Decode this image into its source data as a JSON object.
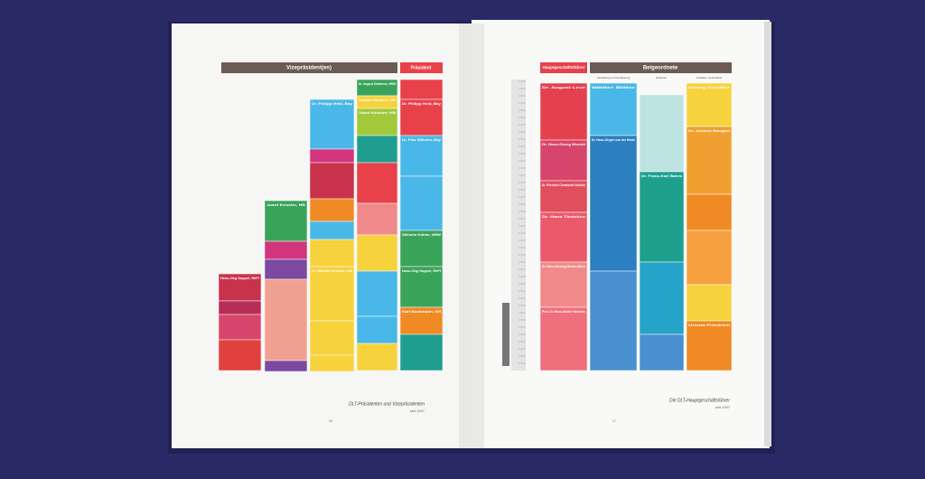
{
  "left_page": {
    "headers": [
      "Vizepräsident(en)",
      "Präsident"
    ],
    "blocks": [
      "Hans-Jörg Duppré, RhPf",
      "Josef Kessler, HB",
      "Dr. Philipp Held, Bay",
      "Dr. August Deinbeck, NRW",
      "Gustav Seebich, NB",
      "Josef Kessler, HB",
      "Dr. Philipp Held, Bay",
      "Dr. Fritz Wilhelm, Bay",
      "Wilhelm Köhler, NRW",
      "Hans-Jörg Duppré, RhPf",
      "Karl Beckmann, SH",
      "Dr. Michael Kreuter, Lbt"
    ],
    "caption": "DLT-Präsidenten und Vizepräsidenten",
    "caption_note": "seit 1947",
    "page_number": "16"
  },
  "right_page": {
    "headers": [
      "Hauptgeschäftsführer",
      "Beigeordnete"
    ],
    "subheaders": [
      "Verwaltung und Verfassung",
      "Finanzen",
      "Soziales, Gesundheit"
    ],
    "blocks": [
      "Dr. August Leve",
      "Dr. Hans-Georg Wormit",
      "Dr. Friedrich Constantin Schulte",
      "Dr. Hans Tiedeken",
      "Dr. Hans-Henning Becker-Birck",
      "Prof. Dr. Hans-Günter Henneke",
      "Walter Bitter",
      "Dr. Hans-Jürgen von der Heide",
      "Dr. Franz-Karl Bahrs",
      "Georg Schäfer",
      "Dr. Johann Bangert",
      "Ursula Friedrich"
    ],
    "caption": "Die DLT-Hauptgeschäftsführer",
    "caption_note": "seit 1947",
    "page_number": "17"
  }
}
